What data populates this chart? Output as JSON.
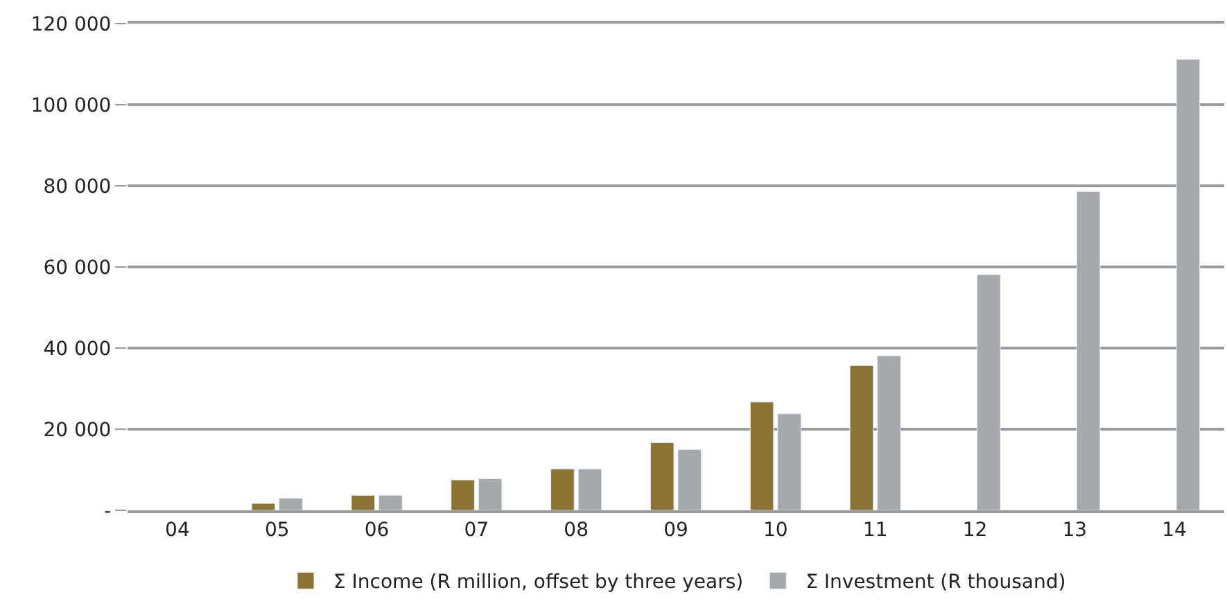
{
  "chart_data": {
    "type": "bar",
    "categories": [
      "04",
      "05",
      "06",
      "07",
      "08",
      "09",
      "10",
      "11",
      "12",
      "13",
      "14"
    ],
    "series": [
      {
        "name": "Σ Income (R million, offset by three years)",
        "color": "#8b7435",
        "values": [
          null,
          1700,
          3700,
          7500,
          10200,
          16700,
          26700,
          35700,
          null,
          null,
          null
        ]
      },
      {
        "name": "Σ Investment (R thousand)",
        "color": "#a7a8ab",
        "values": [
          null,
          3000,
          3700,
          7800,
          10200,
          15000,
          23800,
          38100,
          58100,
          78600,
          111200
        ]
      }
    ],
    "ylim": [
      0,
      120000
    ],
    "yticks": [
      {
        "value": 0,
        "label": "-"
      },
      {
        "value": 20000,
        "label": "20 000"
      },
      {
        "value": 40000,
        "label": "40 000"
      },
      {
        "value": 60000,
        "label": "60 000"
      },
      {
        "value": 80000,
        "label": "80 000"
      },
      {
        "value": 100000,
        "label": "100 000"
      },
      {
        "value": 120000,
        "label": "120 000"
      }
    ],
    "grid": "y",
    "legend": "bottom"
  }
}
